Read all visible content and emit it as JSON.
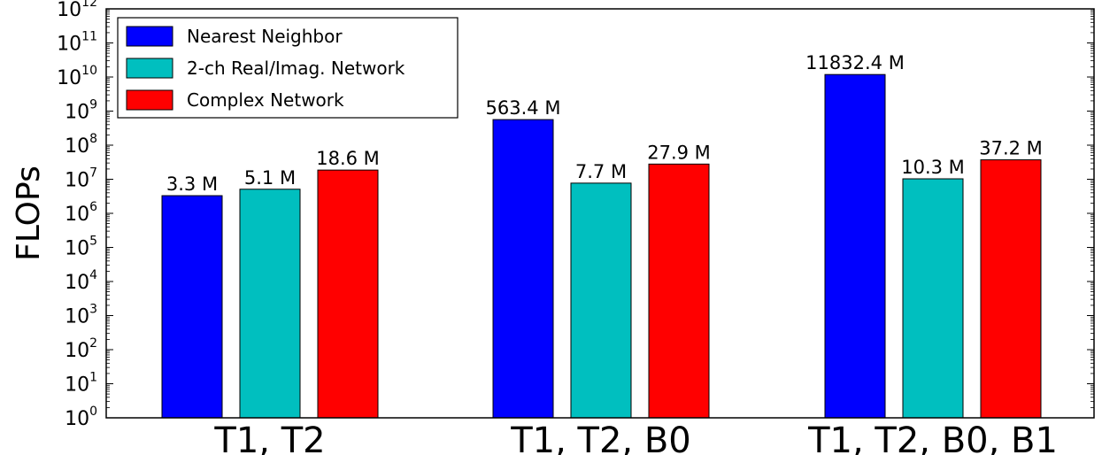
{
  "chart_data": {
    "type": "bar",
    "ylabel": "FLOPs",
    "yscale": "log",
    "ylim": [
      1,
      1000000000000
    ],
    "ytick_base": "10",
    "yticks_exp": [
      "0",
      "1",
      "2",
      "3",
      "4",
      "5",
      "6",
      "7",
      "8",
      "9",
      "10",
      "11",
      "12"
    ],
    "categories": [
      "T1, T2",
      "T1, T2, B0",
      "T1, T2, B0, B1"
    ],
    "legend_position": "top-left",
    "series": [
      {
        "name": "Nearest Neighbor",
        "color": "#0000ff",
        "values": [
          3300000,
          563400000,
          11832400000
        ],
        "labels": [
          "3.3 M",
          "563.4 M",
          "11832.4 M"
        ]
      },
      {
        "name": "2-ch Real/Imag. Network",
        "color": "#00bfbf",
        "values": [
          5100000,
          7700000,
          10300000
        ],
        "labels": [
          "5.1 M",
          "7.7 M",
          "10.3 M"
        ]
      },
      {
        "name": "Complex Network",
        "color": "#ff0000",
        "values": [
          18600000,
          27900000,
          37200000
        ],
        "labels": [
          "18.6 M",
          "27.9 M",
          "37.2 M"
        ]
      }
    ]
  }
}
